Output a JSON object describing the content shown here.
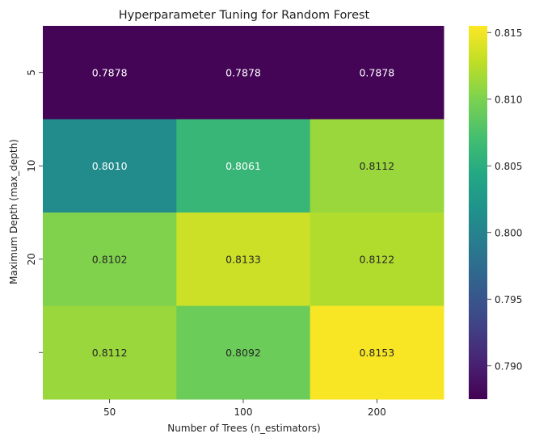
{
  "chart_data": {
    "type": "heatmap",
    "title": "Hyperparameter Tuning for Random Forest",
    "xlabel": "Number of Trees (n_estimators)",
    "ylabel": "Maximum Depth (max_depth)",
    "x_categories": [
      "50",
      "100",
      "200"
    ],
    "y_categories": [
      "5",
      "10",
      "20",
      ""
    ],
    "values": [
      [
        0.7878,
        0.7878,
        0.7878
      ],
      [
        0.801,
        0.8061,
        0.8112
      ],
      [
        0.8102,
        0.8133,
        0.8122
      ],
      [
        0.8112,
        0.8092,
        0.8153
      ]
    ],
    "value_format_decimals": 4,
    "colormap": "viridis",
    "colorbar": {
      "min": 0.7875,
      "max": 0.8155,
      "ticks": [
        0.79,
        0.795,
        0.8,
        0.805,
        0.81,
        0.815
      ],
      "tick_labels": [
        "0.790",
        "0.795",
        "0.800",
        "0.805",
        "0.810",
        "0.815"
      ]
    }
  }
}
